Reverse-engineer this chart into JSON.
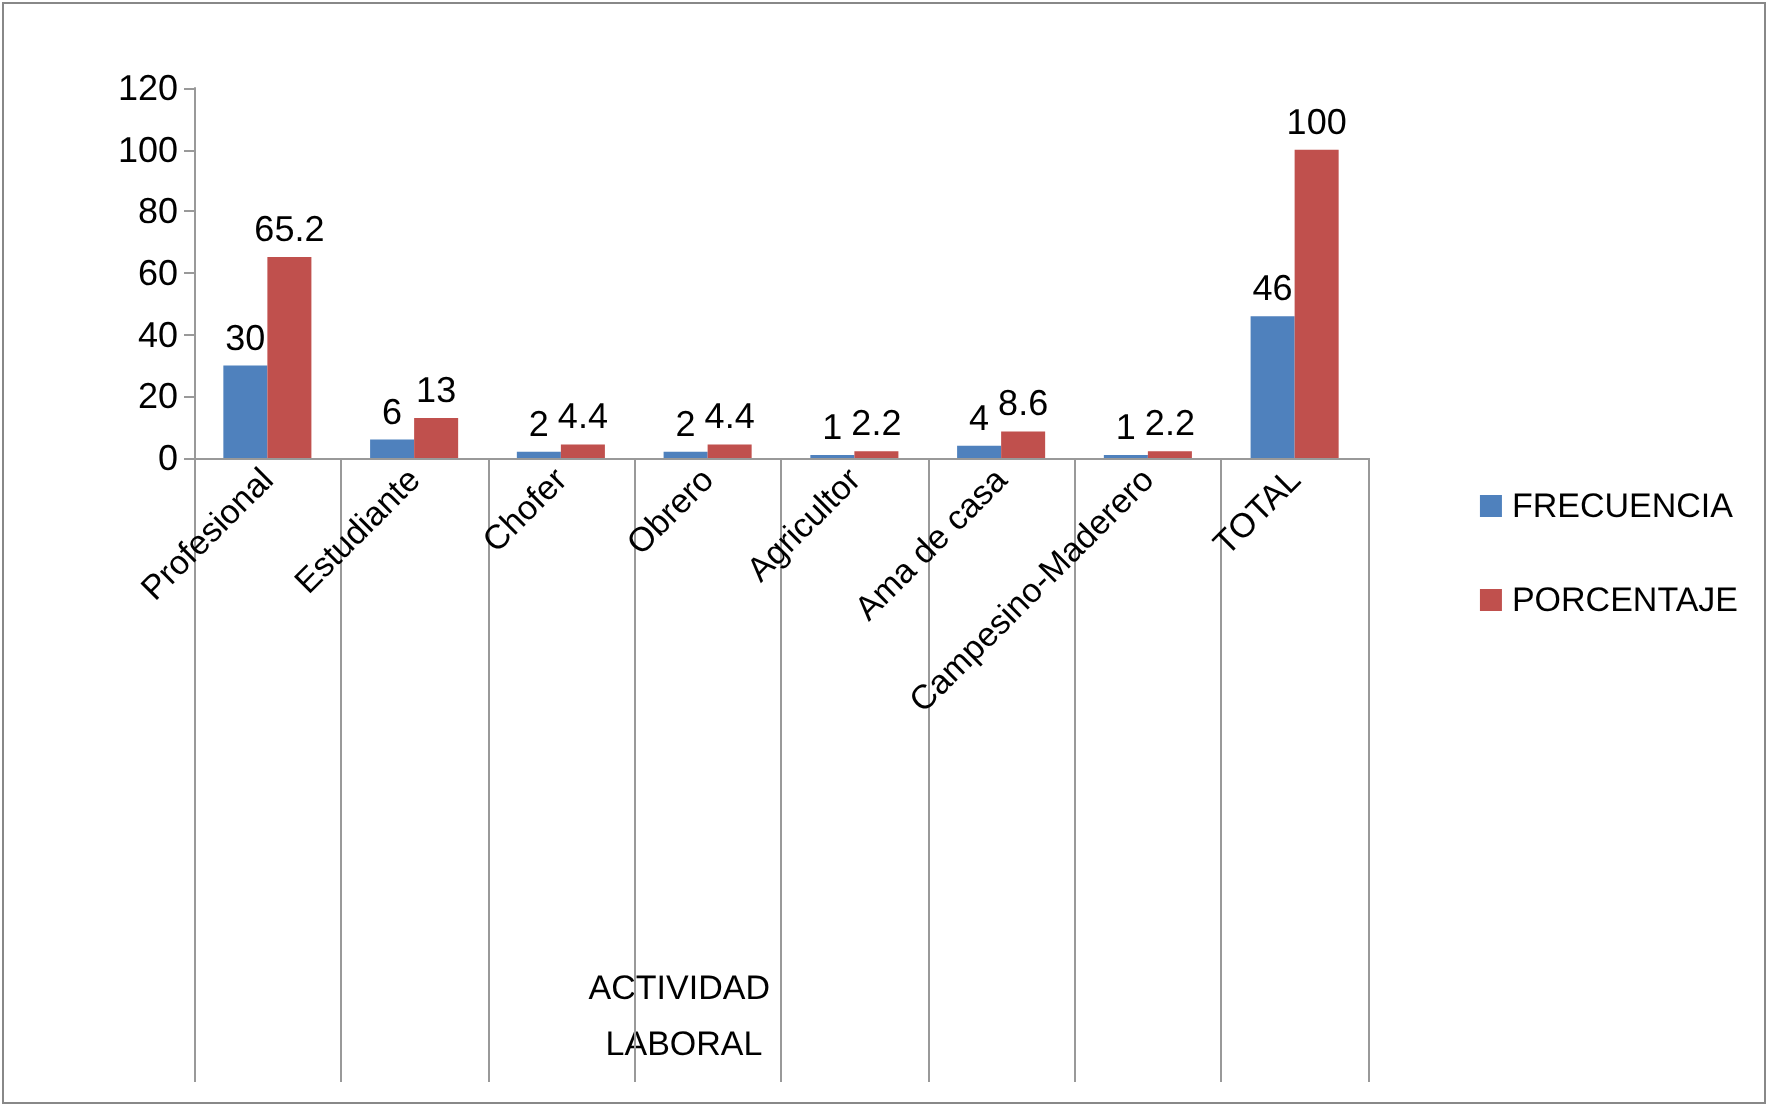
{
  "chart_data": {
    "type": "bar",
    "annotations": [
      "ACTIVIDAD LABORAL"
    ],
    "categories": [
      "Profesional",
      "Estudiante",
      "Chofer",
      "Obrero",
      "Agricultor",
      "Ama de casa",
      "Campesino-Maderero",
      "TOTAL"
    ],
    "series": [
      {
        "name": "FRECUENCIA",
        "color": "#4f81bd",
        "values": [
          30,
          6,
          2,
          2,
          1,
          4,
          1,
          46
        ]
      },
      {
        "name": "PORCENTAJE",
        "color": "#c0504d",
        "values": [
          65.2,
          13,
          4.4,
          4.4,
          2.2,
          8.6,
          2.2,
          100
        ]
      }
    ],
    "ylim": [
      0,
      120
    ],
    "yticks": [
      0,
      20,
      40,
      60,
      80,
      100,
      120
    ],
    "grid": false,
    "legend": "right",
    "data_labels": true
  }
}
